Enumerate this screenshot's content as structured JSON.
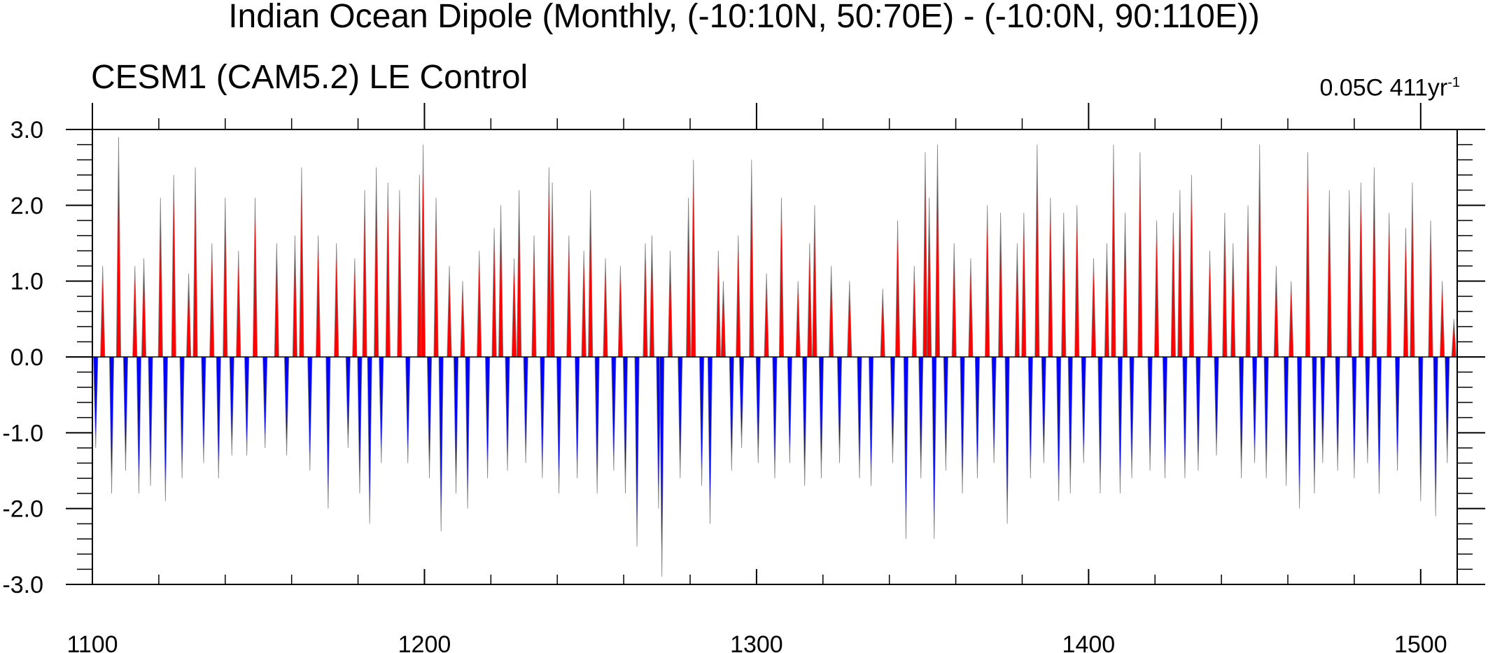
{
  "title": "Indian Ocean Dipole (Monthly, (-10:10N, 50:70E) - (-10:0N, 90:110E))",
  "subtitle": "CESM1 (CAM5.2) LE Control",
  "trend": {
    "value": "0.05C 411yr",
    "exponent": "-1"
  },
  "chart_data": {
    "type": "area",
    "xlim": [
      1100,
      1511
    ],
    "ylim": [
      -3,
      3
    ],
    "x_ticks": [
      1100,
      1200,
      1300,
      1400,
      1500
    ],
    "x_tick_labels": [
      "1100",
      "1200",
      "1300",
      "1400",
      "1500"
    ],
    "y_ticks": [
      -3,
      -2,
      -1,
      0,
      1,
      2,
      3
    ],
    "y_tick_labels": [
      "-3.0",
      "-2.0",
      "-1.0",
      "0.0",
      "1.0",
      "2.0",
      "3.0"
    ],
    "positive_color": "#ff0000",
    "negative_color": "#0000ff",
    "line_color": "#808080",
    "reference_value": 0.0,
    "grid": false,
    "peaks": [
      {
        "x": 1101.0,
        "y": -1.2
      },
      {
        "x": 1103.1,
        "y": 1.2
      },
      {
        "x": 1105.8,
        "y": -1.8
      },
      {
        "x": 1107.9,
        "y": 2.9
      },
      {
        "x": 1110.0,
        "y": -1.5
      },
      {
        "x": 1112.8,
        "y": 1.2
      },
      {
        "x": 1114.0,
        "y": -1.8
      },
      {
        "x": 1115.5,
        "y": 1.3
      },
      {
        "x": 1117.5,
        "y": -1.7
      },
      {
        "x": 1120.5,
        "y": 2.1
      },
      {
        "x": 1122.0,
        "y": -1.9
      },
      {
        "x": 1124.5,
        "y": 2.4
      },
      {
        "x": 1127.0,
        "y": -1.6
      },
      {
        "x": 1129.0,
        "y": 1.1
      },
      {
        "x": 1131.0,
        "y": 2.5
      },
      {
        "x": 1133.5,
        "y": -1.4
      },
      {
        "x": 1136.0,
        "y": 1.5
      },
      {
        "x": 1138.0,
        "y": -1.6
      },
      {
        "x": 1140.0,
        "y": 2.1
      },
      {
        "x": 1142.0,
        "y": -1.3
      },
      {
        "x": 1144.0,
        "y": 1.4
      },
      {
        "x": 1146.5,
        "y": -1.3
      },
      {
        "x": 1149.0,
        "y": 2.1
      },
      {
        "x": 1152.0,
        "y": -1.2
      },
      {
        "x": 1155.5,
        "y": 1.5
      },
      {
        "x": 1158.5,
        "y": -1.3
      },
      {
        "x": 1161.0,
        "y": 1.6
      },
      {
        "x": 1163.0,
        "y": 2.5
      },
      {
        "x": 1165.5,
        "y": -1.5
      },
      {
        "x": 1168.0,
        "y": 1.6
      },
      {
        "x": 1171.0,
        "y": -2.0
      },
      {
        "x": 1173.5,
        "y": 1.5
      },
      {
        "x": 1177.0,
        "y": -1.2
      },
      {
        "x": 1179.0,
        "y": 1.3
      },
      {
        "x": 1180.5,
        "y": -1.8
      },
      {
        "x": 1182.0,
        "y": 2.2
      },
      {
        "x": 1183.5,
        "y": -2.2
      },
      {
        "x": 1185.5,
        "y": 2.5
      },
      {
        "x": 1187.0,
        "y": -1.4
      },
      {
        "x": 1189.0,
        "y": 2.3
      },
      {
        "x": 1192.5,
        "y": 2.2
      },
      {
        "x": 1195.0,
        "y": -1.4
      },
      {
        "x": 1198.5,
        "y": 2.4
      },
      {
        "x": 1199.6,
        "y": 2.8
      },
      {
        "x": 1201.5,
        "y": -1.6
      },
      {
        "x": 1203.5,
        "y": 2.1
      },
      {
        "x": 1205.0,
        "y": -2.3
      },
      {
        "x": 1207.5,
        "y": 1.2
      },
      {
        "x": 1209.5,
        "y": -1.8
      },
      {
        "x": 1211.5,
        "y": 1.0
      },
      {
        "x": 1213.0,
        "y": -2.0
      },
      {
        "x": 1216.5,
        "y": 1.4
      },
      {
        "x": 1219.0,
        "y": -1.6
      },
      {
        "x": 1221.0,
        "y": 1.7
      },
      {
        "x": 1223.0,
        "y": 2.0
      },
      {
        "x": 1225.0,
        "y": -1.5
      },
      {
        "x": 1227.0,
        "y": 1.3
      },
      {
        "x": 1228.5,
        "y": 2.2
      },
      {
        "x": 1230.5,
        "y": -1.4
      },
      {
        "x": 1233.0,
        "y": 1.6
      },
      {
        "x": 1235.5,
        "y": -1.6
      },
      {
        "x": 1237.5,
        "y": 2.5
      },
      {
        "x": 1238.5,
        "y": 2.3
      },
      {
        "x": 1240.5,
        "y": -1.8
      },
      {
        "x": 1243.5,
        "y": 1.6
      },
      {
        "x": 1246.0,
        "y": -1.6
      },
      {
        "x": 1248.0,
        "y": 1.4
      },
      {
        "x": 1250.0,
        "y": 2.2
      },
      {
        "x": 1252.0,
        "y": -1.8
      },
      {
        "x": 1254.5,
        "y": 1.3
      },
      {
        "x": 1257.0,
        "y": -1.5
      },
      {
        "x": 1259.0,
        "y": 1.2
      },
      {
        "x": 1260.5,
        "y": -1.8
      },
      {
        "x": 1264.0,
        "y": -2.5
      },
      {
        "x": 1266.5,
        "y": 1.5
      },
      {
        "x": 1268.5,
        "y": 1.6
      },
      {
        "x": 1270.5,
        "y": -2.0
      },
      {
        "x": 1271.5,
        "y": -2.9
      },
      {
        "x": 1274.0,
        "y": 1.4
      },
      {
        "x": 1277.0,
        "y": -1.6
      },
      {
        "x": 1279.5,
        "y": 2.1
      },
      {
        "x": 1281.0,
        "y": 2.6
      },
      {
        "x": 1283.5,
        "y": -1.7
      },
      {
        "x": 1286.0,
        "y": -2.2
      },
      {
        "x": 1288.5,
        "y": 1.4
      },
      {
        "x": 1290.0,
        "y": 1.0
      },
      {
        "x": 1292.5,
        "y": -1.5
      },
      {
        "x": 1294.5,
        "y": 1.6
      },
      {
        "x": 1295.5,
        "y": -1.2
      },
      {
        "x": 1298.5,
        "y": 2.6
      },
      {
        "x": 1300.5,
        "y": -1.4
      },
      {
        "x": 1303.0,
        "y": 1.1
      },
      {
        "x": 1305.5,
        "y": -1.6
      },
      {
        "x": 1307.5,
        "y": 2.1
      },
      {
        "x": 1310.0,
        "y": -1.4
      },
      {
        "x": 1312.5,
        "y": 1.0
      },
      {
        "x": 1314.5,
        "y": -1.7
      },
      {
        "x": 1316.0,
        "y": 1.5
      },
      {
        "x": 1317.5,
        "y": 2.0
      },
      {
        "x": 1319.5,
        "y": -1.6
      },
      {
        "x": 1322.5,
        "y": 1.2
      },
      {
        "x": 1325.0,
        "y": -1.4
      },
      {
        "x": 1328.0,
        "y": 1.0
      },
      {
        "x": 1331.0,
        "y": -1.6
      },
      {
        "x": 1334.5,
        "y": -1.7
      },
      {
        "x": 1338.0,
        "y": 0.9
      },
      {
        "x": 1341.0,
        "y": -1.4
      },
      {
        "x": 1342.5,
        "y": 1.8
      },
      {
        "x": 1345.0,
        "y": -2.4
      },
      {
        "x": 1347.5,
        "y": 1.2
      },
      {
        "x": 1349.5,
        "y": -1.6
      },
      {
        "x": 1350.8,
        "y": 2.7
      },
      {
        "x": 1352.0,
        "y": 2.1
      },
      {
        "x": 1353.5,
        "y": -2.4
      },
      {
        "x": 1354.5,
        "y": 2.8
      },
      {
        "x": 1357.0,
        "y": -1.5
      },
      {
        "x": 1359.5,
        "y": 1.5
      },
      {
        "x": 1362.0,
        "y": -1.8
      },
      {
        "x": 1364.5,
        "y": 1.3
      },
      {
        "x": 1366.5,
        "y": -1.6
      },
      {
        "x": 1369.5,
        "y": 2.0
      },
      {
        "x": 1371.5,
        "y": -1.4
      },
      {
        "x": 1373.5,
        "y": 1.9
      },
      {
        "x": 1375.5,
        "y": -2.2
      },
      {
        "x": 1378.5,
        "y": 1.5
      },
      {
        "x": 1380.5,
        "y": 1.9
      },
      {
        "x": 1382.5,
        "y": -1.6
      },
      {
        "x": 1384.5,
        "y": 2.8
      },
      {
        "x": 1386.5,
        "y": -1.4
      },
      {
        "x": 1388.5,
        "y": 2.1
      },
      {
        "x": 1391.0,
        "y": -1.9
      },
      {
        "x": 1392.5,
        "y": 1.9
      },
      {
        "x": 1394.5,
        "y": -1.8
      },
      {
        "x": 1396.5,
        "y": 2.0
      },
      {
        "x": 1398.5,
        "y": -1.4
      },
      {
        "x": 1401.5,
        "y": 1.3
      },
      {
        "x": 1403.5,
        "y": -1.8
      },
      {
        "x": 1405.5,
        "y": 1.5
      },
      {
        "x": 1407.5,
        "y": 2.8
      },
      {
        "x": 1409.5,
        "y": -1.8
      },
      {
        "x": 1411.0,
        "y": 1.9
      },
      {
        "x": 1413.0,
        "y": -1.6
      },
      {
        "x": 1415.5,
        "y": 2.7
      },
      {
        "x": 1418.5,
        "y": -1.5
      },
      {
        "x": 1420.5,
        "y": 1.8
      },
      {
        "x": 1423.0,
        "y": -1.6
      },
      {
        "x": 1425.5,
        "y": 1.9
      },
      {
        "x": 1427.5,
        "y": 2.2
      },
      {
        "x": 1429.0,
        "y": -1.6
      },
      {
        "x": 1431.0,
        "y": 2.4
      },
      {
        "x": 1433.0,
        "y": -1.5
      },
      {
        "x": 1436.5,
        "y": 1.4
      },
      {
        "x": 1438.5,
        "y": -1.3
      },
      {
        "x": 1441.0,
        "y": 1.9
      },
      {
        "x": 1443.5,
        "y": 1.5
      },
      {
        "x": 1446.0,
        "y": -1.6
      },
      {
        "x": 1448.0,
        "y": 2.0
      },
      {
        "x": 1450.0,
        "y": -1.4
      },
      {
        "x": 1451.5,
        "y": 2.8
      },
      {
        "x": 1453.5,
        "y": -1.6
      },
      {
        "x": 1456.5,
        "y": 1.2
      },
      {
        "x": 1459.5,
        "y": -1.7
      },
      {
        "x": 1461.0,
        "y": 1.0
      },
      {
        "x": 1463.5,
        "y": -2.0
      },
      {
        "x": 1466.0,
        "y": 2.7
      },
      {
        "x": 1468.0,
        "y": -1.8
      },
      {
        "x": 1470.5,
        "y": -1.4
      },
      {
        "x": 1472.5,
        "y": 2.2
      },
      {
        "x": 1475.0,
        "y": -1.5
      },
      {
        "x": 1478.5,
        "y": 2.2
      },
      {
        "x": 1480.0,
        "y": -1.6
      },
      {
        "x": 1482.0,
        "y": 2.3
      },
      {
        "x": 1484.0,
        "y": -1.4
      },
      {
        "x": 1486.0,
        "y": 2.5
      },
      {
        "x": 1487.5,
        "y": -1.8
      },
      {
        "x": 1490.5,
        "y": 1.9
      },
      {
        "x": 1493.0,
        "y": -1.5
      },
      {
        "x": 1495.5,
        "y": 1.7
      },
      {
        "x": 1497.5,
        "y": 2.3
      },
      {
        "x": 1500.0,
        "y": -1.9
      },
      {
        "x": 1503.0,
        "y": 1.8
      },
      {
        "x": 1504.5,
        "y": -2.1
      },
      {
        "x": 1506.5,
        "y": 1.0
      },
      {
        "x": 1508.0,
        "y": -1.4
      },
      {
        "x": 1510.0,
        "y": 0.5
      }
    ]
  }
}
